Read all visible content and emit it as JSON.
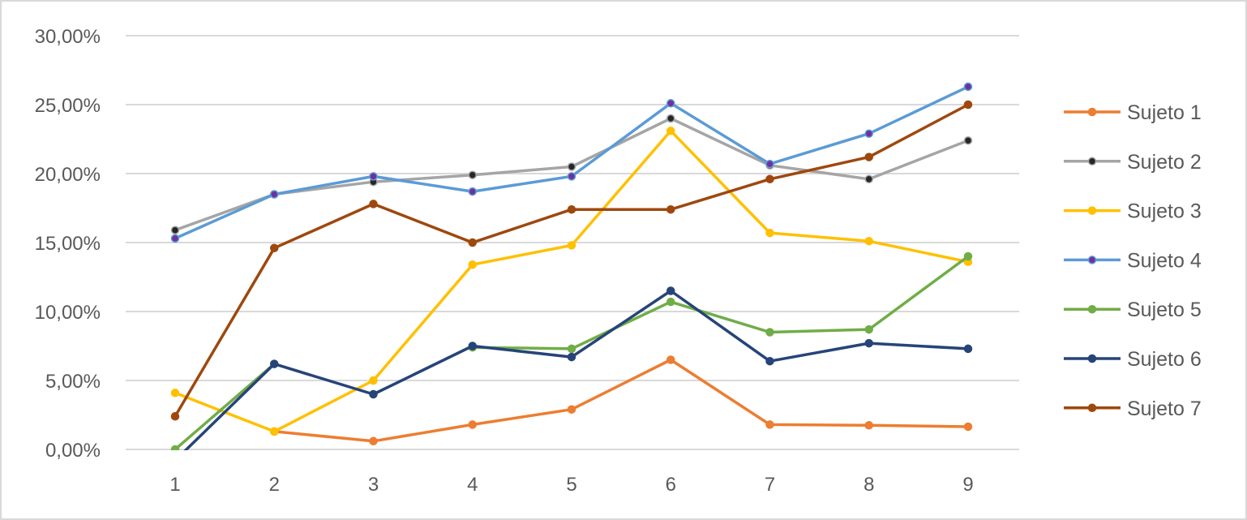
{
  "chart_data": {
    "type": "line",
    "title": "",
    "xlabel": "",
    "ylabel": "",
    "x": [
      1,
      2,
      3,
      4,
      5,
      6,
      7,
      8,
      9
    ],
    "x_tick_labels": [
      "1",
      "2",
      "3",
      "4",
      "5",
      "6",
      "7",
      "8",
      "9"
    ],
    "ylim": [
      0,
      30
    ],
    "y_ticks": [
      0,
      5,
      10,
      15,
      20,
      25,
      30
    ],
    "y_tick_labels": [
      "0,00%",
      "5,00%",
      "10,00%",
      "15,00%",
      "20,00%",
      "25,00%",
      "30,00%"
    ],
    "grid": "horizontal",
    "legend_position": "right",
    "series": [
      {
        "name": "Sujeto 1",
        "color": "#ED7D31",
        "marker_color": "#ED7D31",
        "values": [
          null,
          1.3,
          0.6,
          1.8,
          2.9,
          6.5,
          1.8,
          1.75,
          1.65
        ]
      },
      {
        "name": "Sujeto 2",
        "color": "#A5A5A5",
        "marker_color": "#262626",
        "values": [
          15.9,
          18.5,
          19.4,
          19.9,
          20.5,
          24.0,
          20.6,
          19.6,
          22.4
        ]
      },
      {
        "name": "Sujeto 3",
        "color": "#FFC000",
        "marker_color": "#FFC000",
        "values": [
          4.1,
          1.3,
          5.0,
          13.4,
          14.8,
          23.1,
          15.7,
          15.1,
          13.6
        ]
      },
      {
        "name": "Sujeto 4",
        "color": "#5B9BD5",
        "marker_color": "#7030A0",
        "values": [
          15.3,
          18.5,
          19.8,
          18.7,
          19.8,
          25.1,
          20.7,
          22.9,
          26.3
        ]
      },
      {
        "name": "Sujeto 5",
        "color": "#70AD47",
        "marker_color": "#70AD47",
        "values": [
          0.0,
          6.2,
          null,
          7.4,
          7.3,
          10.7,
          8.5,
          8.7,
          14.0
        ]
      },
      {
        "name": "Sujeto 6",
        "color": "#264478",
        "marker_color": "#264478",
        "values": [
          -0.8,
          6.2,
          4.0,
          7.5,
          6.7,
          11.5,
          6.4,
          7.7,
          7.3
        ]
      },
      {
        "name": "Sujeto 7",
        "color": "#9E480E",
        "marker_color": "#9E480E",
        "values": [
          2.4,
          14.6,
          17.8,
          15.0,
          17.4,
          17.4,
          19.6,
          21.2,
          25.0
        ]
      }
    ]
  }
}
